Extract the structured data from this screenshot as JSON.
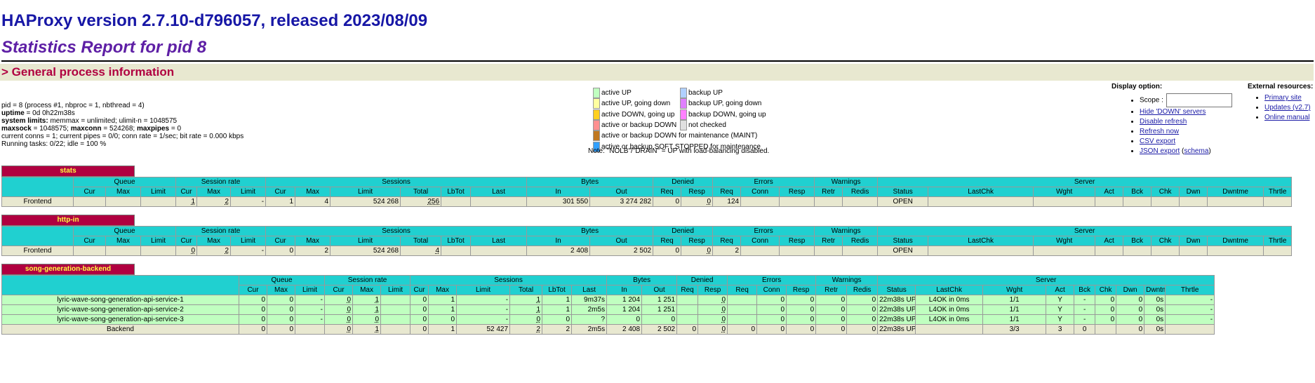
{
  "header": {
    "title": "HAProxy version 2.7.10-d796057, released 2023/08/09",
    "subtitle": "Statistics Report for pid 8",
    "section": "> General process information"
  },
  "process": {
    "line1": "pid = 8 (process #1, nbproc = 1, nbthread = 4)",
    "uptime_label": "uptime",
    "uptime": " = 0d 0h22m38s",
    "syslimits_label": "system limits:",
    "syslimits": " memmax = unlimited; ulimit-n = 1048575",
    "maxsock_label": "maxsock",
    "maxsock": " = 1048575; ",
    "maxconn_label": "maxconn",
    "maxconn": " = 524268; ",
    "maxpipes_label": "maxpipes",
    "maxpipes": " = 0",
    "conns": "current conns = 1; current pipes = 0/0; conn rate = 1/sec; bit rate = 0.000 kbps",
    "tasks": "Running tasks: 0/22; idle = 100 %"
  },
  "legend": {
    "left": [
      {
        "color": "#c0ffc0",
        "label": "active UP"
      },
      {
        "color": "#ffffa0",
        "label": "active UP, going down"
      },
      {
        "color": "#ffd020",
        "label": "active DOWN, going up"
      },
      {
        "color": "#ff9090",
        "label": "active or backup DOWN"
      },
      {
        "color": "#c07820",
        "label": "active or backup DOWN for maintenance (MAINT)"
      },
      {
        "color": "#30a0ff",
        "label": "active or backup SOFT STOPPED for maintenance"
      }
    ],
    "right": [
      {
        "color": "#b0d0ff",
        "label": "backup UP"
      },
      {
        "color": "#e080ff",
        "label": "backup UP, going down"
      },
      {
        "color": "#ff80ff",
        "label": "backup DOWN, going up"
      },
      {
        "color": "#e0e0e0",
        "label": "not checked"
      }
    ],
    "note": "Note: \"NOLB\"/\"DRAIN\" = UP with load-balancing disabled."
  },
  "display": {
    "title": "Display option:",
    "scope_label": "Scope :",
    "links": [
      "Hide 'DOWN' servers",
      "Disable refresh",
      "Refresh now",
      "CSV export"
    ],
    "json_label": "JSON export",
    "schema_label": "schema"
  },
  "external": {
    "title": "External resources:",
    "links": [
      "Primary site",
      "Updates (v2.7)",
      "Online manual"
    ]
  },
  "groups": [
    "Queue",
    "Session rate",
    "Sessions",
    "Bytes",
    "Denied",
    "Errors",
    "Warnings",
    "Server"
  ],
  "columns": [
    "Cur",
    "Max",
    "Limit",
    "Cur",
    "Max",
    "Limit",
    "Cur",
    "Max",
    "Limit",
    "Total",
    "LbTot",
    "Last",
    "In",
    "Out",
    "Req",
    "Resp",
    "Req",
    "Conn",
    "Resp",
    "Retr",
    "Redis",
    "Status",
    "LastChk",
    "Wght",
    "Act",
    "Bck",
    "Chk",
    "Dwn",
    "Dwntme",
    "Thrtle"
  ],
  "proxies": [
    {
      "name": "stats",
      "rows": [
        {
          "kind": "fe",
          "cells": [
            "Frontend",
            "",
            "",
            "",
            "1",
            "2",
            "-",
            "1",
            "4",
            "524 268",
            "256",
            "",
            "",
            "301 550",
            "3 274 282",
            "0",
            "0",
            "124",
            "",
            "",
            "",
            "",
            "OPEN",
            "",
            "",
            "",
            "",
            "",
            "",
            "",
            ""
          ]
        }
      ]
    },
    {
      "name": "http-in",
      "rows": [
        {
          "kind": "fe",
          "cells": [
            "Frontend",
            "",
            "",
            "",
            "0",
            "2",
            "-",
            "0",
            "2",
            "524 268",
            "4",
            "",
            "",
            "2 408",
            "2 502",
            "0",
            "0",
            "2",
            "",
            "",
            "",
            "",
            "OPEN",
            "",
            "",
            "",
            "",
            "",
            "",
            "",
            ""
          ]
        }
      ]
    },
    {
      "name": "song-generation-backend",
      "rows": [
        {
          "kind": "srv",
          "cells": [
            "lyric-wave-song-generation-api-service-1",
            "0",
            "0",
            "-",
            "0",
            "1",
            "",
            "0",
            "1",
            "-",
            "1",
            "1",
            "9m37s",
            "1 204",
            "1 251",
            "",
            "0",
            "",
            "0",
            "0",
            "0",
            "0",
            "22m38s UP",
            "L4OK in 0ms",
            "1/1",
            "Y",
            "-",
            "0",
            "0",
            "0s",
            "-"
          ]
        },
        {
          "kind": "srv",
          "cells": [
            "lyric-wave-song-generation-api-service-2",
            "0",
            "0",
            "-",
            "0",
            "1",
            "",
            "0",
            "1",
            "-",
            "1",
            "1",
            "2m5s",
            "1 204",
            "1 251",
            "",
            "0",
            "",
            "0",
            "0",
            "0",
            "0",
            "22m38s UP",
            "L4OK in 0ms",
            "1/1",
            "Y",
            "-",
            "0",
            "0",
            "0s",
            "-"
          ]
        },
        {
          "kind": "srv",
          "cells": [
            "lyric-wave-song-generation-api-service-3",
            "0",
            "0",
            "-",
            "0",
            "0",
            "",
            "0",
            "0",
            "-",
            "0",
            "0",
            "?",
            "0",
            "0",
            "",
            "0",
            "",
            "0",
            "0",
            "0",
            "0",
            "22m38s UP",
            "L4OK in 0ms",
            "1/1",
            "Y",
            "-",
            "0",
            "0",
            "0s",
            "-"
          ]
        },
        {
          "kind": "be",
          "cells": [
            "Backend",
            "0",
            "0",
            "",
            "0",
            "1",
            "",
            "0",
            "1",
            "52 427",
            "2",
            "2",
            "2m5s",
            "2 408",
            "2 502",
            "0",
            "0",
            "0",
            "0",
            "0",
            "0",
            "0",
            "22m38s UP",
            "",
            "3/3",
            "3",
            "0",
            "",
            "0",
            "0s",
            ""
          ]
        }
      ]
    }
  ]
}
